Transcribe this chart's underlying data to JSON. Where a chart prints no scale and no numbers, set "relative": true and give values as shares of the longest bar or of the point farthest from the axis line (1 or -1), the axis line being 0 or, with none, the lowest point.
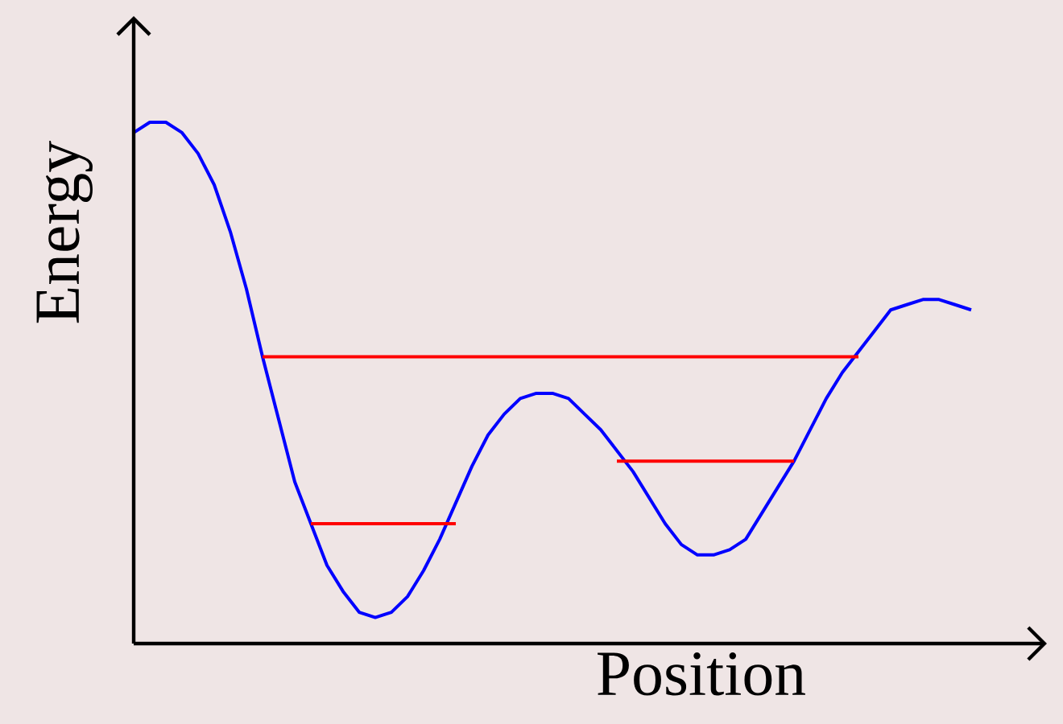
{
  "chart_data": {
    "type": "line",
    "relative": true,
    "xlabel": "Position",
    "ylabel": "Energy",
    "marker": "none",
    "line_style": "solid",
    "categories": [
      null,
      null,
      null,
      null,
      null,
      null,
      null,
      null,
      null,
      null,
      null,
      null,
      null,
      null,
      null,
      null,
      null,
      null,
      null,
      null,
      null,
      null,
      null,
      null,
      null,
      null,
      null,
      null,
      null,
      null,
      null,
      null,
      null,
      null,
      null,
      null,
      null,
      null,
      null,
      null,
      null,
      null,
      null,
      null,
      null,
      null,
      null,
      null,
      null,
      null,
      null,
      null,
      null
    ],
    "series": [
      {
        "color": "#0000ff",
        "values": [
          0.98,
          1.0,
          1.0,
          0.98,
          0.94,
          0.88,
          0.79,
          0.68,
          0.55,
          0.43,
          0.31,
          0.23,
          0.15,
          0.1,
          0.06,
          0.05,
          0.06,
          0.09,
          0.14,
          0.2,
          0.27,
          0.34,
          0.4,
          0.44,
          0.47,
          0.48,
          0.48,
          0.47,
          0.44,
          0.41,
          0.37,
          0.33,
          0.28,
          0.23,
          0.19,
          0.17,
          0.17,
          0.18,
          0.2,
          0.25,
          0.3,
          0.35,
          0.41,
          0.47,
          0.52,
          0.56,
          0.6,
          0.64,
          0.65,
          0.66,
          0.66,
          0.65,
          0.64
        ]
      },
      {
        "color": "#ff0000",
        "values": [
          null,
          null,
          null,
          null,
          null,
          null,
          null,
          null,
          0.55,
          0.55,
          0.55,
          0.55,
          0.55,
          0.55,
          0.55,
          0.55,
          0.55,
          0.55,
          0.55,
          0.55,
          0.55,
          0.55,
          0.55,
          0.55,
          0.55,
          0.55,
          0.55,
          0.55,
          0.55,
          0.55,
          0.55,
          0.55,
          0.55,
          0.55,
          0.55,
          0.55,
          0.55,
          0.55,
          0.55,
          0.55,
          0.55,
          0.55,
          0.55,
          0.55,
          0.55,
          0.55,
          null,
          null,
          null,
          null,
          null,
          null,
          null
        ]
      },
      {
        "color": "#ff0000",
        "values": [
          null,
          null,
          null,
          null,
          null,
          null,
          null,
          null,
          null,
          null,
          null,
          0.23,
          0.23,
          0.23,
          0.23,
          0.23,
          0.23,
          0.23,
          0.23,
          0.23,
          0.23,
          null,
          null,
          null,
          null,
          null,
          null,
          null,
          null,
          null,
          null,
          null,
          null,
          null,
          null,
          null,
          null,
          null,
          null,
          null,
          null,
          null,
          null,
          null,
          null,
          null,
          null,
          null,
          null,
          null,
          null,
          null,
          null
        ]
      },
      {
        "color": "#ff0000",
        "values": [
          null,
          null,
          null,
          null,
          null,
          null,
          null,
          null,
          null,
          null,
          null,
          null,
          null,
          null,
          null,
          null,
          null,
          null,
          null,
          null,
          null,
          null,
          null,
          null,
          null,
          null,
          null,
          null,
          null,
          null,
          0.35,
          0.35,
          0.35,
          0.35,
          0.35,
          0.35,
          0.35,
          0.35,
          0.35,
          0.35,
          0.35,
          0.35,
          null,
          null,
          null,
          null,
          null,
          null,
          null,
          null,
          null,
          null,
          null
        ]
      }
    ]
  }
}
